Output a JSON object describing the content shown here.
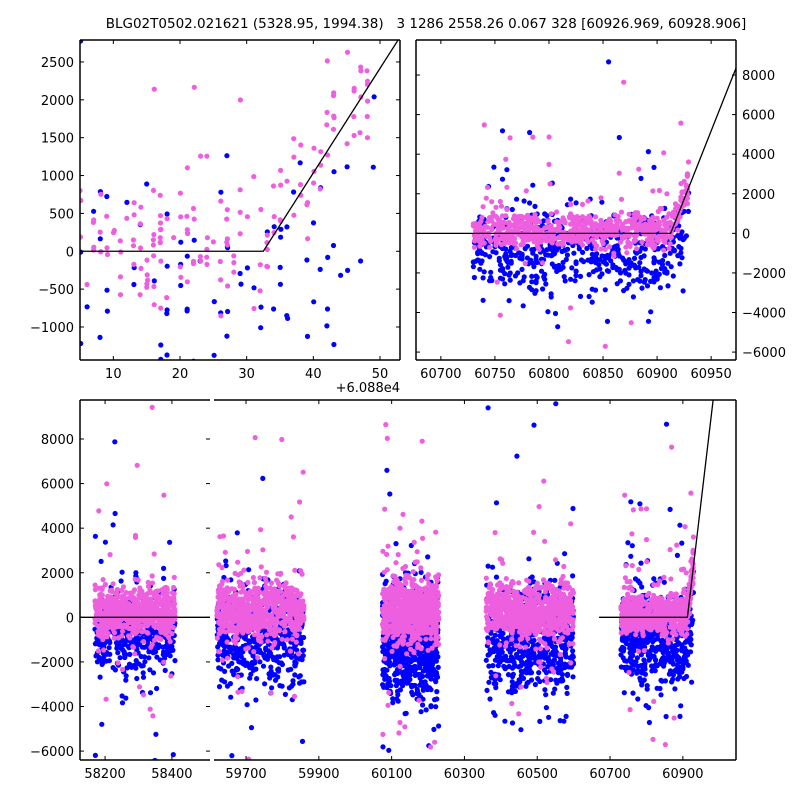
{
  "title": "BLG02T0502.021621 (5328.95, 1994.38)   3 1286 2558.26 0.067 328 [60926.969, 60928.906]",
  "colors": {
    "series_a": "#0000ff",
    "series_b": "#ee5fe0",
    "model": "#000000"
  },
  "chart_data": {
    "type": "scatter",
    "title": "BLG02T0502.021621 (5328.95, 1994.38)   3 1286 2558.26 0.067 328 [60926.969, 60928.906]",
    "model_line": {
      "baseline": 0,
      "t0": 60912.5,
      "slope_per_day": 138
    },
    "series": [
      {
        "name": "blue",
        "color": "#0000ff"
      },
      {
        "name": "pink",
        "color": "#ee5fe0"
      }
    ],
    "clusters": [
      {
        "x_range": [
          58170,
          58410
        ],
        "n_blue": 450,
        "n_pink": 650,
        "blue_mean": -600,
        "blue_sd": 900,
        "pink_mean": 250,
        "pink_sd": 550
      },
      {
        "x_range": [
          59620,
          59860
        ],
        "n_blue": 500,
        "n_pink": 700,
        "blue_mean": -900,
        "blue_sd": 1100,
        "pink_mean": 250,
        "pink_sd": 600
      },
      {
        "x_range": [
          60075,
          60230
        ],
        "n_blue": 650,
        "n_pink": 800,
        "blue_mean": -1100,
        "blue_sd": 1300,
        "pink_mean": 200,
        "pink_sd": 650
      },
      {
        "x_range": [
          60360,
          60600
        ],
        "n_blue": 600,
        "n_pink": 750,
        "blue_mean": -1000,
        "blue_sd": 1200,
        "pink_mean": 250,
        "pink_sd": 600
      },
      {
        "x_range": [
          60730,
          60930
        ],
        "n_blue": 550,
        "n_pink": 700,
        "blue_mean": -900,
        "blue_sd": 1100,
        "pink_mean": 150,
        "pink_sd": 450
      }
    ],
    "panels": [
      {
        "id": "top-left",
        "xlim": [
          60885,
          60933
        ],
        "ylim": [
          -1436,
          2790
        ],
        "xticks": [
          60890,
          60900,
          60910,
          60920,
          60930
        ],
        "xtick_labels": [
          "10",
          "20",
          "30",
          "40",
          "50"
        ],
        "yticks": [
          -1000,
          -500,
          0,
          500,
          1000,
          1500,
          2000,
          2500
        ],
        "ytick_labels": [
          "−1000",
          "−500",
          "0",
          "500",
          "1000",
          "1500",
          "2000",
          "2500"
        ],
        "x_offset_label": "+6.088e4",
        "ytick_side": "left"
      },
      {
        "id": "top-right",
        "xlim": [
          60677,
          60973
        ],
        "ylim": [
          -6400,
          9770
        ],
        "xticks": [
          60700,
          60750,
          60800,
          60850,
          60900,
          60950
        ],
        "xtick_labels": [
          "60700",
          "60750",
          "60800",
          "60850",
          "60900",
          "60950"
        ],
        "yticks": [
          -6000,
          -4000,
          -2000,
          0,
          2000,
          4000,
          6000,
          8000
        ],
        "ytick_labels": [
          "−6000",
          "−4000",
          "−2000",
          "0",
          "2000",
          "4000",
          "6000",
          "8000"
        ],
        "ytick_side": "right"
      },
      {
        "id": "bottom-left",
        "xlim": [
          58125,
          58514
        ],
        "ylim": [
          -6400,
          9750
        ],
        "xticks": [
          58200,
          58400
        ],
        "xtick_labels": [
          "58200",
          "58400"
        ],
        "yticks": [
          -6000,
          -4000,
          -2000,
          0,
          2000,
          4000,
          6000,
          8000
        ],
        "ytick_labels": [
          "−6000",
          "−4000",
          "−2000",
          "0",
          "2000",
          "4000",
          "6000",
          "8000"
        ],
        "ytick_side": "left"
      },
      {
        "id": "bottom-right",
        "xlim": [
          59612,
          61046
        ],
        "ylim": [
          -6400,
          9750
        ],
        "xticks": [
          59700,
          59900,
          60100,
          60300,
          60500,
          60700,
          60900
        ],
        "xtick_labels": [
          "59700",
          "59900",
          "60100",
          "60300",
          "60500",
          "60700",
          "60900"
        ],
        "yticks": [],
        "ytick_labels": [],
        "ytick_side": "none",
        "model_start": 60670
      }
    ]
  }
}
